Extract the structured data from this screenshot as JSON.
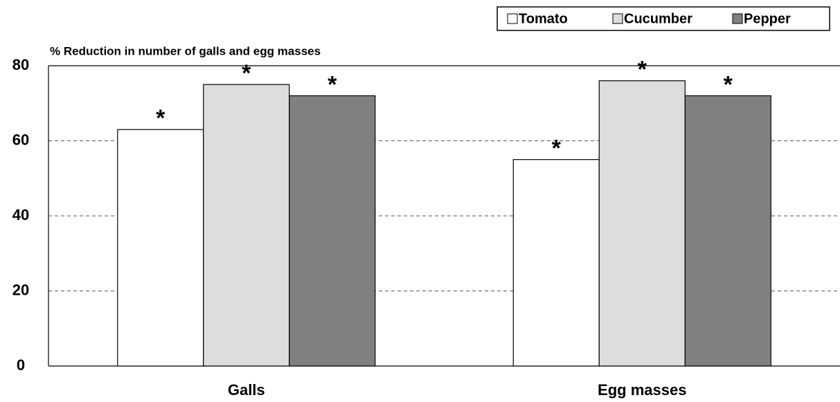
{
  "chart_data": {
    "type": "bar",
    "y_axis_label": "% Reduction in number of galls and egg masses",
    "categories": [
      "Galls",
      "Egg masses"
    ],
    "series": [
      {
        "name": "Tomato",
        "color": "#ffffff",
        "values": [
          63,
          55
        ],
        "annotations": [
          "*",
          "*"
        ]
      },
      {
        "name": "Cucumber",
        "color": "#dddddd",
        "values": [
          75,
          76
        ],
        "annotations": [
          "*",
          "*"
        ]
      },
      {
        "name": "Pepper",
        "color": "#808080",
        "values": [
          72,
          72
        ],
        "annotations": [
          "*",
          "*"
        ]
      }
    ],
    "ylim": [
      0,
      80
    ],
    "yticks": [
      0,
      20,
      40,
      60,
      80
    ],
    "grid": true,
    "legend": "top-right"
  }
}
